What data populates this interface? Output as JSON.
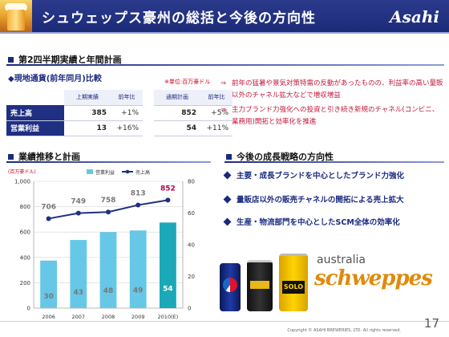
{
  "header": {
    "title": "シュウェップス豪州の総括と今後の方向性",
    "logo": "Asahi"
  },
  "sections": {
    "results_title": "第2四半期実績と年間計画",
    "chart_title": "業績推移と計画",
    "strategy_title": "今後の成長戦略の方向性"
  },
  "results": {
    "subtitle": "◆現地通貨(前年同月)比較",
    "unit_note": "※単位:百万豪ドル",
    "headers": [
      "上期実績",
      "前年比",
      "通期計画",
      "前年比"
    ],
    "rows": [
      {
        "label": "売上高",
        "h1": "385",
        "h1_yoy": "+1%",
        "fy": "852",
        "fy_yoy": "+5%"
      },
      {
        "label": "営業利益",
        "h1": "13",
        "h1_yoy": "+16%",
        "fy": "54",
        "fy_yoy": "+11%"
      }
    ]
  },
  "notes": [
    {
      "arrow": "⇒",
      "text": "前年の猛暑や景気対策特需の反動があったものの、利益率の高い量販以外のチャネル拡大などで増収増益"
    },
    {
      "arrow": "⇒",
      "text": "主力ブランド力強化への投資と引き続き新規のチャネル(コンビニ、業務用)開拓と効率化を推進"
    }
  ],
  "strategies": [
    "主要・成長ブランドを中心としたブランド力強化",
    "量販店以外の販売チャネルの開拓による売上拡大",
    "生産・物流部門を中心としたSCM全体の効率化"
  ],
  "brand": {
    "top": "australia",
    "name": "schweppes",
    "can_text": "SOLO"
  },
  "footer": {
    "copyright": "Copyright © ASAHI BREWERIES, LTD. All rights reserved.",
    "page": "17"
  },
  "colors": {
    "primary": "#1a2a80",
    "bar": "#66c8e6",
    "bar_forecast": "#1ba8b8",
    "line": "#1f2f82",
    "accent": "#d0021b"
  },
  "chart_data": {
    "type": "bar",
    "unit_label": "(百万豪ドル)",
    "categories": [
      "2006",
      "2007",
      "2008",
      "2009",
      "2010(E)"
    ],
    "series": [
      {
        "name": "営業利益",
        "type": "bar",
        "axis": "right",
        "values": [
          30,
          43,
          48,
          49,
          54
        ]
      },
      {
        "name": "売上高",
        "type": "line",
        "axis": "left",
        "values": [
          706,
          749,
          758,
          813,
          852
        ]
      }
    ],
    "left_axis": {
      "ticks": [
        "0",
        "200",
        "400",
        "600",
        "800",
        "1,000"
      ],
      "range": [
        0,
        1000
      ]
    },
    "right_axis": {
      "ticks": [
        "0",
        "20",
        "40",
        "60",
        "80"
      ],
      "range": [
        0,
        80
      ]
    },
    "legend_position": "top"
  }
}
